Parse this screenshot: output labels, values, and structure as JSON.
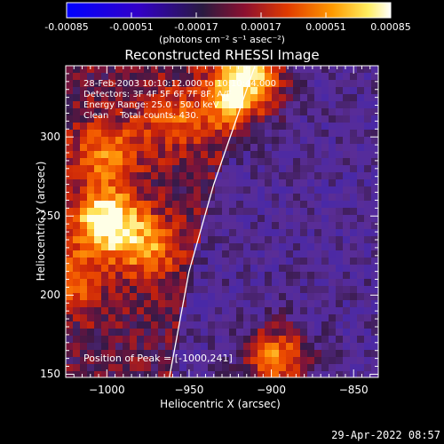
{
  "colorbar": {
    "tick_labels": [
      "-0.00085",
      "-0.00051",
      "-0.00017",
      "0.00017",
      "0.00051",
      "0.00085"
    ],
    "tick_values": [
      -0.00085,
      -0.00051,
      -0.00017,
      0.00017,
      0.00051,
      0.00085
    ],
    "unit": "(photons cm⁻² s⁻¹ asec⁻²)",
    "colors": [
      "#0000ff",
      "#3c00b4",
      "#281e3c",
      "#dc2800",
      "#ff8c00",
      "#ffffff"
    ]
  },
  "chart_data": {
    "type": "heatmap",
    "title": "Reconstructed RHESSI Image",
    "xlabel": "Heliocentric X (arcsec)",
    "ylabel": "Heliocentric Y (arcsec)",
    "xlim": [
      -1025,
      -835
    ],
    "ylim": [
      148,
      345
    ],
    "xticks": [
      -1000,
      -950,
      -900,
      -850
    ],
    "xtick_labels": [
      "−1000",
      "−950",
      "−900",
      "−850"
    ],
    "yticks": [
      150,
      200,
      250,
      300
    ],
    "ytick_labels": [
      "150",
      "200",
      "250",
      "300"
    ],
    "sources": [
      {
        "x": -1000,
        "y": 247,
        "intensity": 1.0
      },
      {
        "x": -912,
        "y": 337,
        "intensity": 0.95
      },
      {
        "x": -897,
        "y": 160,
        "intensity": 0.8
      },
      {
        "x": -1000,
        "y": 290,
        "intensity": 0.55
      },
      {
        "x": -975,
        "y": 230,
        "intensity": 0.55
      },
      {
        "x": -925,
        "y": 320,
        "intensity": 0.5
      },
      {
        "x": -1020,
        "y": 210,
        "intensity": 0.45
      },
      {
        "x": -960,
        "y": 310,
        "intensity": 0.4
      }
    ],
    "limb_curve": [
      [
        -962,
        148
      ],
      [
        -950,
        215
      ],
      [
        -935,
        270
      ],
      [
        -920,
        315
      ],
      [
        -910,
        345
      ]
    ],
    "annotations": {
      "line1": "28-Feb-2003 10:10:12.000 to 10:10:44.000",
      "line2": "Detectors: 3F 4F 5F 6F 7F 8F, A/F",
      "line3": "Energy Range: 25.0 - 50.0 keV",
      "line4": "Clean    Total counts: 430.",
      "peak": "Position of Peak = [-1000,241]"
    }
  },
  "footer": {
    "timestamp": "29-Apr-2022 08:57"
  }
}
